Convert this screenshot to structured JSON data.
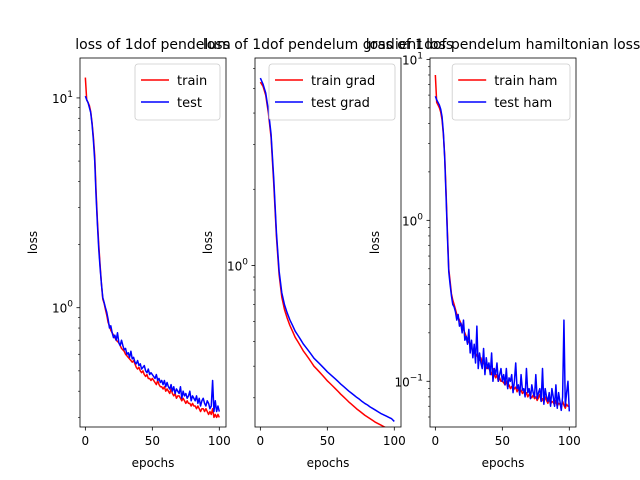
{
  "chart_data": [
    {
      "type": "line",
      "title": "loss of 1dof pendelum",
      "xlabel": "epochs",
      "ylabel": "loss",
      "yscale": "log",
      "xlim": [
        -4,
        105
      ],
      "ylim": [
        0.27,
        15.5
      ],
      "xticks": [
        0,
        50,
        100
      ],
      "yticks": [
        {
          "value": 1,
          "label": "10^0",
          "base": "10",
          "exp": "0"
        },
        {
          "value": 10,
          "label": "10^1",
          "base": "10",
          "exp": "1"
        }
      ],
      "legend_position": "upper right",
      "series": [
        {
          "name": "train",
          "color": "#ff0000",
          "x": [
            0,
            1,
            2,
            3,
            4,
            5,
            6,
            7,
            8,
            9,
            10,
            11,
            12,
            13,
            14,
            15,
            16,
            17,
            18,
            19,
            20,
            21,
            22,
            23,
            24,
            25,
            26,
            27,
            28,
            29,
            30,
            31,
            32,
            33,
            34,
            35,
            36,
            37,
            38,
            39,
            40,
            41,
            42,
            43,
            44,
            45,
            46,
            47,
            48,
            49,
            50,
            51,
            52,
            53,
            54,
            55,
            56,
            57,
            58,
            59,
            60,
            61,
            62,
            63,
            64,
            65,
            66,
            67,
            68,
            69,
            70,
            71,
            72,
            73,
            74,
            75,
            76,
            77,
            78,
            79,
            80,
            81,
            82,
            83,
            84,
            85,
            86,
            87,
            88,
            89,
            90,
            91,
            92,
            93,
            94,
            95,
            96,
            97,
            98,
            99,
            100
          ],
          "y": [
            12.5,
            9.8,
            9.5,
            9.2,
            8.6,
            7.6,
            6.5,
            5.3,
            3.6,
            2.6,
            2.0,
            1.6,
            1.3,
            1.1,
            1.05,
            0.98,
            0.92,
            0.85,
            0.82,
            0.78,
            0.76,
            0.74,
            0.72,
            0.7,
            0.69,
            0.68,
            0.66,
            0.64,
            0.63,
            0.62,
            0.6,
            0.59,
            0.58,
            0.57,
            0.56,
            0.55,
            0.56,
            0.54,
            0.52,
            0.51,
            0.52,
            0.5,
            0.49,
            0.5,
            0.48,
            0.47,
            0.48,
            0.46,
            0.46,
            0.45,
            0.46,
            0.45,
            0.44,
            0.43,
            0.45,
            0.43,
            0.42,
            0.42,
            0.41,
            0.42,
            0.4,
            0.41,
            0.4,
            0.39,
            0.41,
            0.39,
            0.38,
            0.39,
            0.37,
            0.38,
            0.38,
            0.37,
            0.36,
            0.37,
            0.36,
            0.35,
            0.36,
            0.35,
            0.35,
            0.34,
            0.35,
            0.34,
            0.34,
            0.33,
            0.34,
            0.33,
            0.32,
            0.33,
            0.33,
            0.32,
            0.33,
            0.32,
            0.31,
            0.32,
            0.31,
            0.33,
            0.3,
            0.31,
            0.3,
            0.31,
            0.3
          ]
        },
        {
          "name": "test",
          "color": "#0000ff",
          "x": [
            0,
            1,
            2,
            3,
            4,
            5,
            6,
            7,
            8,
            9,
            10,
            11,
            12,
            13,
            14,
            15,
            16,
            17,
            18,
            19,
            20,
            21,
            22,
            23,
            24,
            25,
            26,
            27,
            28,
            29,
            30,
            31,
            32,
            33,
            34,
            35,
            36,
            37,
            38,
            39,
            40,
            41,
            42,
            43,
            44,
            45,
            46,
            47,
            48,
            49,
            50,
            51,
            52,
            53,
            54,
            55,
            56,
            57,
            58,
            59,
            60,
            61,
            62,
            63,
            64,
            65,
            66,
            67,
            68,
            69,
            70,
            71,
            72,
            73,
            74,
            75,
            76,
            77,
            78,
            79,
            80,
            81,
            82,
            83,
            84,
            85,
            86,
            87,
            88,
            89,
            90,
            91,
            92,
            93,
            94,
            95,
            96,
            97,
            98,
            99,
            100
          ],
          "y": [
            10.2,
            9.8,
            9.5,
            9.0,
            8.5,
            7.5,
            6.3,
            5.0,
            3.4,
            2.5,
            1.9,
            1.55,
            1.3,
            1.12,
            1.06,
            1.0,
            0.95,
            0.88,
            0.8,
            0.82,
            0.76,
            0.72,
            0.74,
            0.7,
            0.76,
            0.68,
            0.66,
            0.7,
            0.66,
            0.63,
            0.64,
            0.6,
            0.61,
            0.58,
            0.62,
            0.57,
            0.58,
            0.55,
            0.54,
            0.56,
            0.53,
            0.54,
            0.51,
            0.52,
            0.53,
            0.5,
            0.49,
            0.51,
            0.48,
            0.49,
            0.48,
            0.47,
            0.46,
            0.48,
            0.45,
            0.46,
            0.44,
            0.45,
            0.43,
            0.45,
            0.42,
            0.44,
            0.42,
            0.41,
            0.43,
            0.4,
            0.42,
            0.39,
            0.41,
            0.4,
            0.39,
            0.42,
            0.37,
            0.4,
            0.38,
            0.39,
            0.37,
            0.38,
            0.4,
            0.36,
            0.38,
            0.37,
            0.36,
            0.38,
            0.35,
            0.37,
            0.34,
            0.36,
            0.37,
            0.35,
            0.34,
            0.36,
            0.35,
            0.33,
            0.34,
            0.45,
            0.32,
            0.36,
            0.32,
            0.34,
            0.32
          ]
        }
      ]
    },
    {
      "type": "line",
      "title": "loss of 1dof pendelum gradient loss",
      "xlabel": "epochs",
      "ylabel": "loss",
      "yscale": "log",
      "xlim": [
        -4,
        105
      ],
      "ylim": [
        0.23,
        6.6
      ],
      "xticks": [
        0,
        50,
        100
      ],
      "yticks": [
        {
          "value": 1,
          "label": "10^0",
          "base": "10",
          "exp": "0"
        }
      ],
      "legend_position": "upper right",
      "series": [
        {
          "name": "train grad",
          "color": "#ff0000",
          "x": [
            0,
            2,
            4,
            6,
            8,
            10,
            12,
            14,
            16,
            18,
            20,
            22,
            24,
            26,
            28,
            30,
            32,
            34,
            36,
            38,
            40,
            42,
            44,
            46,
            48,
            50,
            52,
            54,
            56,
            58,
            60,
            62,
            64,
            66,
            68,
            70,
            72,
            74,
            76,
            78,
            80,
            82,
            84,
            86,
            88,
            90,
            92,
            94,
            96,
            98,
            100
          ],
          "y": [
            5.3,
            5.1,
            4.7,
            4.0,
            3.2,
            2.1,
            1.3,
            0.92,
            0.75,
            0.67,
            0.62,
            0.58,
            0.55,
            0.52,
            0.5,
            0.48,
            0.46,
            0.445,
            0.43,
            0.415,
            0.4,
            0.39,
            0.38,
            0.37,
            0.36,
            0.35,
            0.342,
            0.334,
            0.326,
            0.318,
            0.31,
            0.303,
            0.296,
            0.289,
            0.283,
            0.277,
            0.271,
            0.266,
            0.261,
            0.256,
            0.252,
            0.248,
            0.244,
            0.24,
            0.237,
            0.234,
            0.231,
            0.228,
            0.226,
            0.223,
            0.222
          ]
        },
        {
          "name": "test grad",
          "color": "#0000ff",
          "x": [
            0,
            2,
            4,
            6,
            8,
            10,
            12,
            14,
            16,
            18,
            20,
            22,
            24,
            26,
            28,
            30,
            32,
            34,
            36,
            38,
            40,
            42,
            44,
            46,
            48,
            50,
            52,
            54,
            56,
            58,
            60,
            62,
            64,
            66,
            68,
            70,
            72,
            74,
            76,
            78,
            80,
            82,
            84,
            86,
            88,
            90,
            92,
            94,
            96,
            98,
            100
          ],
          "y": [
            5.5,
            5.2,
            4.8,
            4.1,
            3.3,
            2.2,
            1.35,
            0.95,
            0.78,
            0.7,
            0.65,
            0.61,
            0.58,
            0.55,
            0.53,
            0.51,
            0.49,
            0.475,
            0.46,
            0.445,
            0.43,
            0.42,
            0.41,
            0.4,
            0.39,
            0.38,
            0.372,
            0.364,
            0.356,
            0.348,
            0.34,
            0.333,
            0.326,
            0.319,
            0.313,
            0.307,
            0.301,
            0.296,
            0.29,
            0.285,
            0.281,
            0.276,
            0.272,
            0.268,
            0.264,
            0.26,
            0.257,
            0.254,
            0.251,
            0.248,
            0.242
          ]
        }
      ]
    },
    {
      "type": "line",
      "title": "loss of 1dof pendelum hamiltonian loss",
      "xlabel": "epochs",
      "ylabel": "loss",
      "yscale": "log",
      "xlim": [
        -4,
        105
      ],
      "ylim": [
        0.052,
        10.2
      ],
      "xticks": [
        0,
        50,
        100
      ],
      "yticks": [
        {
          "value": 0.1,
          "label": "10^-1",
          "base": "10",
          "exp": "−1"
        },
        {
          "value": 1,
          "label": "10^0",
          "base": "10",
          "exp": "0"
        },
        {
          "value": 10,
          "label": "10^1",
          "base": "10",
          "exp": "1"
        }
      ],
      "legend_position": "upper right",
      "series": [
        {
          "name": "train ham",
          "color": "#ff0000",
          "x": [
            0,
            1,
            2,
            3,
            4,
            5,
            6,
            7,
            8,
            9,
            10,
            11,
            12,
            13,
            14,
            15,
            16,
            17,
            18,
            19,
            20,
            21,
            22,
            23,
            24,
            25,
            26,
            27,
            28,
            29,
            30,
            31,
            32,
            33,
            34,
            35,
            36,
            37,
            38,
            39,
            40,
            41,
            42,
            43,
            44,
            45,
            46,
            47,
            48,
            49,
            50,
            51,
            52,
            53,
            54,
            55,
            56,
            57,
            58,
            59,
            60,
            61,
            62,
            63,
            64,
            65,
            66,
            67,
            68,
            69,
            70,
            71,
            72,
            73,
            74,
            75,
            76,
            77,
            78,
            79,
            80,
            81,
            82,
            83,
            84,
            85,
            86,
            87,
            88,
            89,
            90,
            91,
            92,
            93,
            94,
            95,
            96,
            97,
            98,
            99,
            100
          ],
          "y": [
            8.0,
            5.4,
            5.2,
            5.0,
            4.7,
            4.2,
            3.4,
            2.5,
            1.5,
            0.85,
            0.5,
            0.42,
            0.35,
            0.32,
            0.3,
            0.28,
            0.26,
            0.25,
            0.24,
            0.23,
            0.22,
            0.21,
            0.2,
            0.19,
            0.18,
            0.175,
            0.17,
            0.16,
            0.155,
            0.15,
            0.15,
            0.145,
            0.14,
            0.135,
            0.14,
            0.13,
            0.13,
            0.125,
            0.12,
            0.125,
            0.12,
            0.115,
            0.11,
            0.12,
            0.11,
            0.105,
            0.11,
            0.1,
            0.105,
            0.1,
            0.1,
            0.098,
            0.095,
            0.1,
            0.092,
            0.095,
            0.09,
            0.093,
            0.088,
            0.09,
            0.092,
            0.086,
            0.09,
            0.085,
            0.088,
            0.084,
            0.087,
            0.082,
            0.085,
            0.08,
            0.083,
            0.081,
            0.079,
            0.082,
            0.078,
            0.08,
            0.076,
            0.079,
            0.083,
            0.075,
            0.078,
            0.074,
            0.08,
            0.076,
            0.073,
            0.078,
            0.072,
            0.075,
            0.074,
            0.071,
            0.076,
            0.07,
            0.073,
            0.072,
            0.069,
            0.075,
            0.071,
            0.068,
            0.072,
            0.07,
            0.07
          ]
        },
        {
          "name": "test ham",
          "color": "#0000ff",
          "x": [
            0,
            1,
            2,
            3,
            4,
            5,
            6,
            7,
            8,
            9,
            10,
            11,
            12,
            13,
            14,
            15,
            16,
            17,
            18,
            19,
            20,
            21,
            22,
            23,
            24,
            25,
            26,
            27,
            28,
            29,
            30,
            31,
            32,
            33,
            34,
            35,
            36,
            37,
            38,
            39,
            40,
            41,
            42,
            43,
            44,
            45,
            46,
            47,
            48,
            49,
            50,
            51,
            52,
            53,
            54,
            55,
            56,
            57,
            58,
            59,
            60,
            61,
            62,
            63,
            64,
            65,
            66,
            67,
            68,
            69,
            70,
            71,
            72,
            73,
            74,
            75,
            76,
            77,
            78,
            79,
            80,
            81,
            82,
            83,
            84,
            85,
            86,
            87,
            88,
            89,
            90,
            91,
            92,
            93,
            94,
            95,
            96,
            97,
            98,
            99,
            100
          ],
          "y": [
            5.9,
            5.6,
            5.4,
            5.2,
            4.9,
            4.4,
            3.5,
            2.4,
            1.4,
            0.8,
            0.48,
            0.4,
            0.34,
            0.3,
            0.29,
            0.27,
            0.24,
            0.26,
            0.22,
            0.23,
            0.2,
            0.24,
            0.18,
            0.19,
            0.17,
            0.21,
            0.15,
            0.18,
            0.14,
            0.17,
            0.13,
            0.22,
            0.12,
            0.15,
            0.13,
            0.12,
            0.16,
            0.11,
            0.14,
            0.12,
            0.13,
            0.11,
            0.15,
            0.1,
            0.12,
            0.11,
            0.13,
            0.1,
            0.11,
            0.12,
            0.1,
            0.11,
            0.095,
            0.12,
            0.09,
            0.105,
            0.1,
            0.11,
            0.085,
            0.1,
            0.13,
            0.09,
            0.095,
            0.082,
            0.11,
            0.088,
            0.09,
            0.08,
            0.12,
            0.085,
            0.09,
            0.078,
            0.095,
            0.085,
            0.08,
            0.11,
            0.078,
            0.085,
            0.09,
            0.075,
            0.12,
            0.072,
            0.09,
            0.08,
            0.075,
            0.085,
            0.07,
            0.09,
            0.08,
            0.07,
            0.095,
            0.068,
            0.085,
            0.075,
            0.066,
            0.08,
            0.24,
            0.07,
            0.085,
            0.1,
            0.065
          ]
        }
      ]
    }
  ]
}
